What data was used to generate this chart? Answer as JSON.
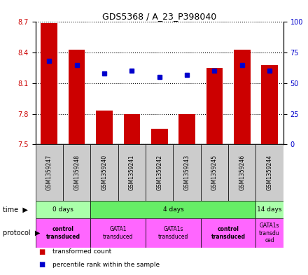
{
  "title": "GDS5368 / A_23_P398040",
  "samples": [
    "GSM1359247",
    "GSM1359248",
    "GSM1359240",
    "GSM1359241",
    "GSM1359242",
    "GSM1359243",
    "GSM1359245",
    "GSM1359246",
    "GSM1359244"
  ],
  "bar_values": [
    8.69,
    8.43,
    7.83,
    7.8,
    7.65,
    7.8,
    8.25,
    8.43,
    8.28
  ],
  "bar_base": 7.5,
  "dot_percentiles": [
    68,
    65,
    58,
    60,
    55,
    57,
    60,
    65,
    60
  ],
  "ylim": [
    7.5,
    8.7
  ],
  "yticks_left": [
    7.5,
    7.8,
    8.1,
    8.4,
    8.7
  ],
  "yticks_right": [
    0,
    25,
    50,
    75,
    100
  ],
  "bar_color": "#cc0000",
  "dot_color": "#0000cc",
  "time_groups": [
    {
      "label": "0 days",
      "start": 0,
      "end": 2,
      "color": "#aaffaa"
    },
    {
      "label": "4 days",
      "start": 2,
      "end": 8,
      "color": "#66ee66"
    },
    {
      "label": "14 days",
      "start": 8,
      "end": 9,
      "color": "#aaffaa"
    }
  ],
  "protocol_groups": [
    {
      "label": "control\ntransduced",
      "start": 0,
      "end": 2,
      "color": "#ff66ff",
      "bold": true
    },
    {
      "label": "GATA1\ntransduced",
      "start": 2,
      "end": 4,
      "color": "#ff66ff",
      "bold": false
    },
    {
      "label": "GATA1s\ntransduced",
      "start": 4,
      "end": 6,
      "color": "#ff66ff",
      "bold": false
    },
    {
      "label": "control\ntransduced",
      "start": 6,
      "end": 8,
      "color": "#ff66ff",
      "bold": true
    },
    {
      "label": "GATA1s\ntransdu\nced",
      "start": 8,
      "end": 9,
      "color": "#ff66ff",
      "bold": false
    }
  ],
  "legend_items": [
    {
      "color": "#cc0000",
      "label": "transformed count"
    },
    {
      "color": "#0000cc",
      "label": "percentile rank within the sample"
    }
  ],
  "sample_box_color": "#cccccc",
  "ylabel_left_color": "#cc0000",
  "ylabel_right_color": "#0000cc",
  "fig_width": 4.4,
  "fig_height": 3.93,
  "dpi": 100
}
